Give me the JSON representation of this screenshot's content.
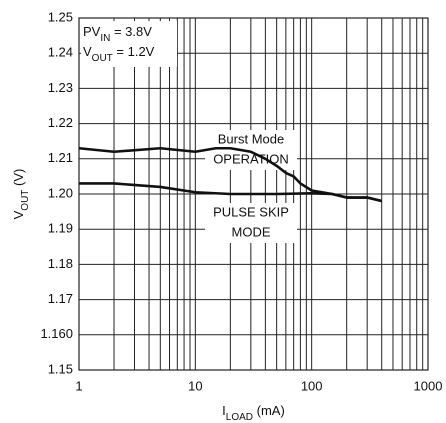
{
  "chart_data": {
    "type": "line",
    "xlabel": [
      "I",
      "LOAD",
      " (mA)"
    ],
    "ylabel": [
      "V",
      "OUT",
      " (V)"
    ],
    "xscale": "log",
    "xlim": [
      1,
      1000
    ],
    "xticks": [
      1,
      10,
      100,
      1000
    ],
    "ylim": [
      1.15,
      1.25
    ],
    "yticks": [
      1.15,
      {
        "value": 1.16,
        "label": "1.160"
      },
      1.17,
      1.18,
      1.19,
      {
        "value": 1.2,
        "label": "1.20"
      },
      1.21,
      1.22,
      1.23,
      1.24,
      1.25
    ],
    "grid": true,
    "conditions": [
      [
        "PV",
        "IN",
        " = 3.8V"
      ],
      [
        "V",
        "OUT",
        " = 1.2V"
      ]
    ],
    "annotations": [
      [
        "Burst Mode",
        "OPERATION"
      ],
      [
        "PULSE SKIP",
        "MODE"
      ]
    ],
    "series": [
      {
        "color": "#111111",
        "x": [
          1,
          2,
          5,
          10,
          15,
          20,
          30,
          40,
          50,
          60,
          70,
          80,
          100,
          150,
          200,
          300,
          400
        ],
        "values": [
          1.213,
          1.212,
          1.213,
          1.212,
          1.213,
          1.213,
          1.212,
          1.21,
          1.208,
          1.206,
          1.205,
          1.203,
          1.201,
          1.2,
          1.199,
          1.199,
          1.198
        ]
      },
      {
        "color": "#111111",
        "x": [
          1,
          2,
          5,
          10,
          20,
          50,
          100,
          150,
          200,
          300,
          400
        ],
        "values": [
          1.203,
          1.203,
          1.202,
          1.2005,
          1.2,
          1.2,
          1.2002,
          1.2,
          1.199,
          1.199,
          1.198
        ]
      }
    ]
  }
}
